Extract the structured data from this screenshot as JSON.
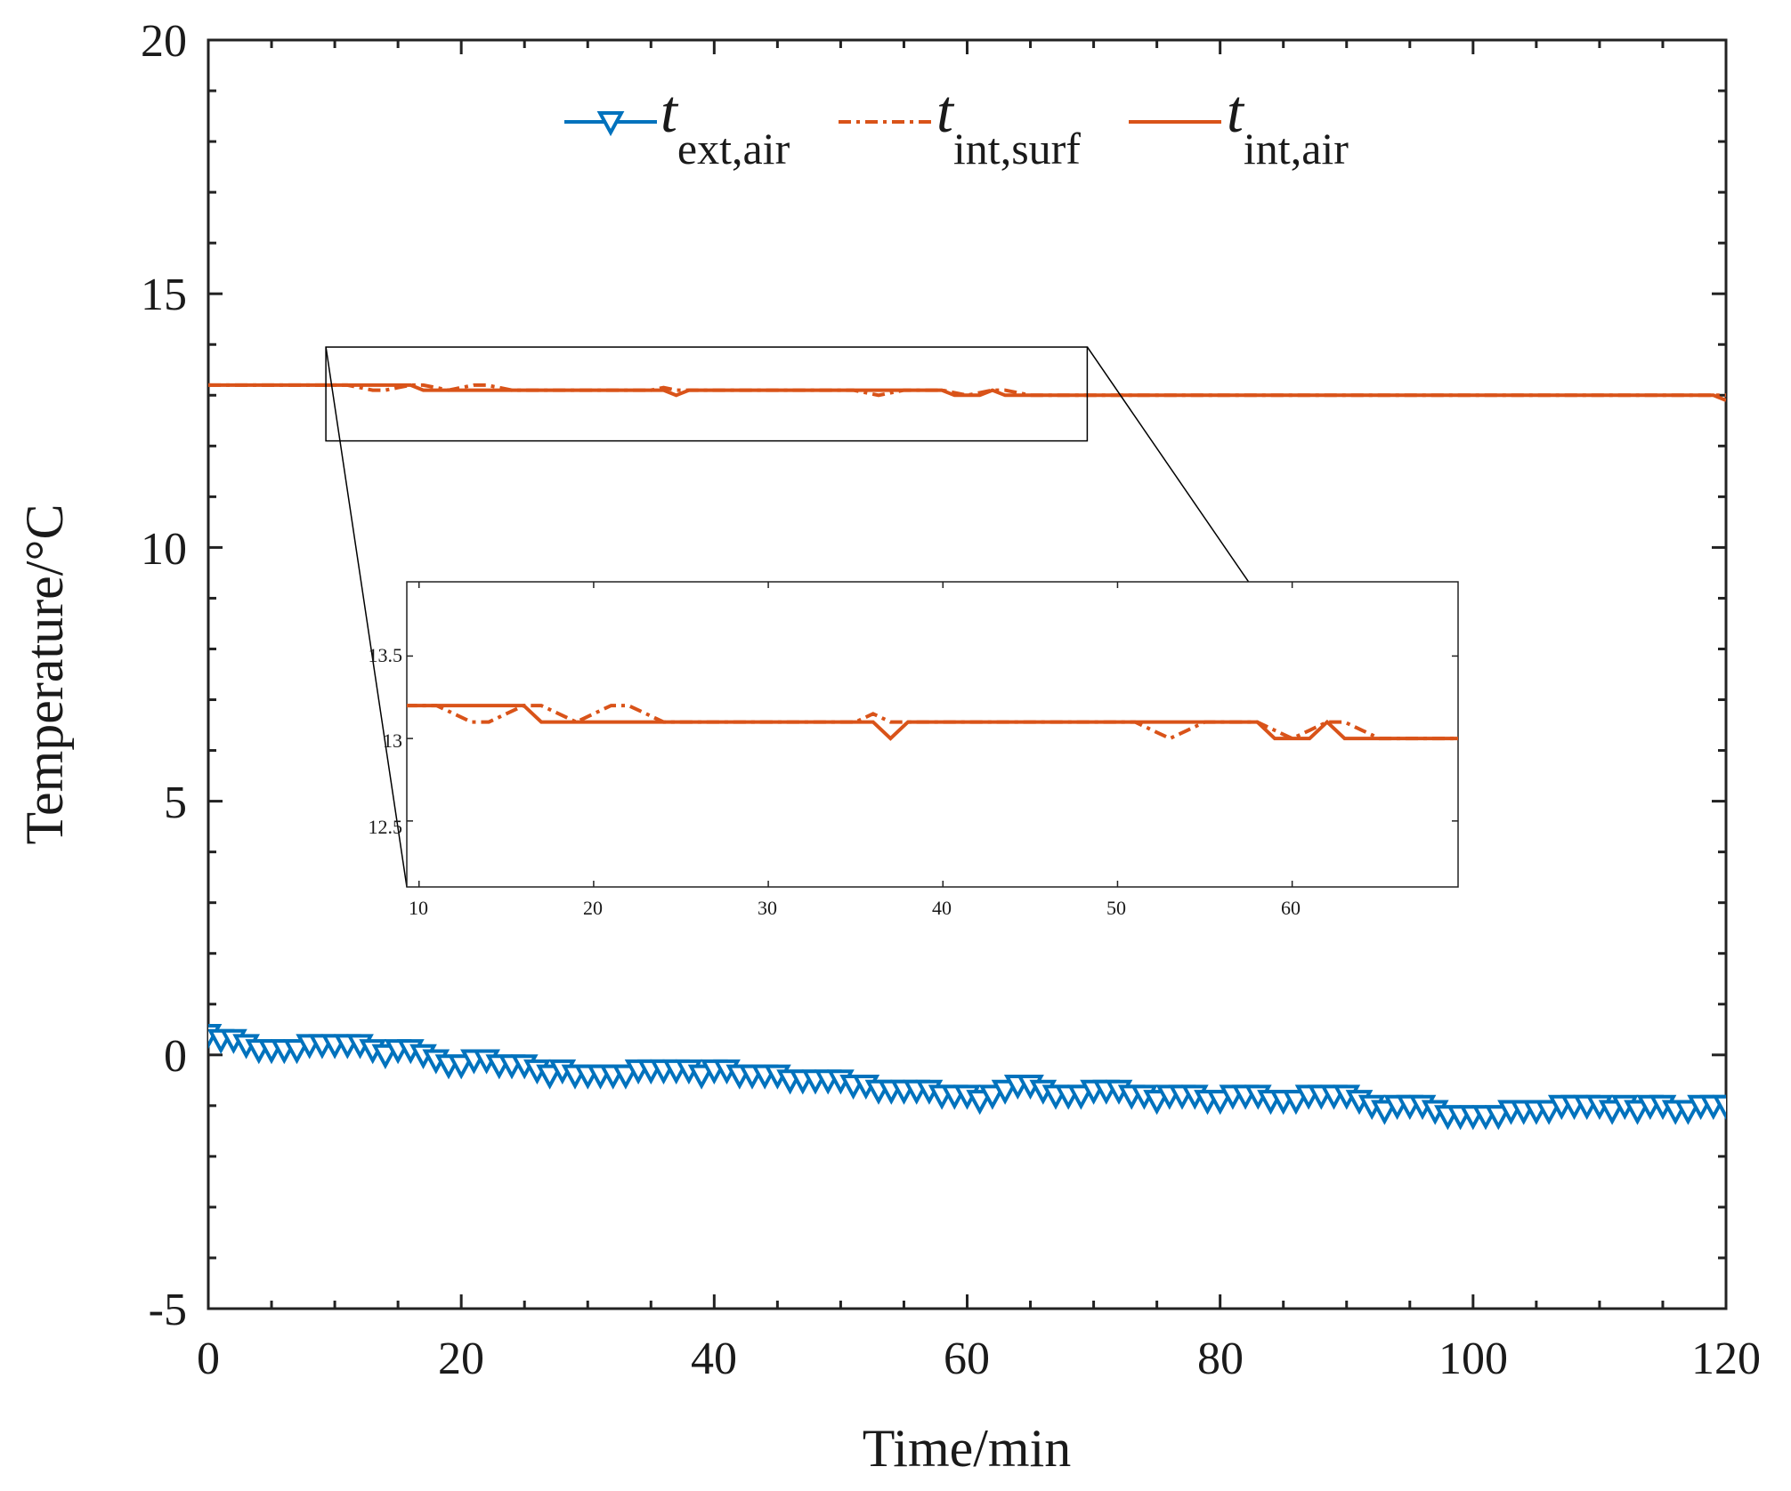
{
  "chart_data": {
    "type": "line",
    "title": "",
    "xlabel": "Time/min",
    "ylabel": "Temperature/°C",
    "xlim": [
      0,
      120
    ],
    "ylim": [
      -5,
      20
    ],
    "xticks": [
      "0",
      "20",
      "40",
      "60",
      "80",
      "100",
      "120"
    ],
    "yticks": [
      "-5",
      "0",
      "5",
      "10",
      "15",
      "20"
    ],
    "legend": {
      "position": "top-center",
      "entries": [
        {
          "symbol": "t",
          "subscript": "ext,air"
        },
        {
          "symbol": "t",
          "subscript": "int,surf"
        },
        {
          "symbol": "t",
          "subscript": "int,air"
        }
      ]
    },
    "colors": {
      "ext_air": "#0072BD",
      "int_surf": "#D95319",
      "int_air": "#D95319",
      "frame": "#000000"
    },
    "series": [
      {
        "name": "t ext,air",
        "style": "solid line with downward-triangle markers",
        "x": [
          0,
          1,
          2,
          3,
          4,
          5,
          6,
          7,
          8,
          9,
          10,
          11,
          12,
          13,
          14,
          15,
          16,
          17,
          18,
          19,
          20,
          21,
          22,
          23,
          24,
          25,
          26,
          27,
          28,
          29,
          30,
          31,
          32,
          33,
          34,
          35,
          36,
          37,
          38,
          39,
          40,
          41,
          42,
          43,
          44,
          45,
          46,
          47,
          48,
          49,
          50,
          51,
          52,
          53,
          54,
          55,
          56,
          57,
          58,
          59,
          60,
          61,
          62,
          63,
          64,
          65,
          66,
          67,
          68,
          69,
          70,
          71,
          72,
          73,
          74,
          75,
          76,
          77,
          78,
          79,
          80,
          81,
          82,
          83,
          84,
          85,
          86,
          87,
          88,
          89,
          90,
          91,
          92,
          93,
          94,
          95,
          96,
          97,
          98,
          99,
          100,
          101,
          102,
          103,
          104,
          105,
          106,
          107,
          108,
          109,
          110,
          111,
          112,
          113,
          114,
          115,
          116,
          117,
          118,
          119,
          120
        ],
        "values": [
          0.4,
          0.3,
          0.3,
          0.2,
          0.1,
          0.1,
          0.1,
          0.1,
          0.2,
          0.2,
          0.2,
          0.2,
          0.2,
          0.1,
          0.0,
          0.1,
          0.1,
          0.0,
          -0.1,
          -0.2,
          -0.2,
          -0.1,
          -0.1,
          -0.2,
          -0.2,
          -0.2,
          -0.3,
          -0.4,
          -0.3,
          -0.4,
          -0.4,
          -0.4,
          -0.4,
          -0.4,
          -0.3,
          -0.3,
          -0.3,
          -0.3,
          -0.3,
          -0.4,
          -0.3,
          -0.3,
          -0.4,
          -0.4,
          -0.4,
          -0.4,
          -0.5,
          -0.5,
          -0.5,
          -0.5,
          -0.5,
          -0.6,
          -0.6,
          -0.7,
          -0.7,
          -0.7,
          -0.7,
          -0.7,
          -0.8,
          -0.8,
          -0.8,
          -0.9,
          -0.8,
          -0.7,
          -0.6,
          -0.6,
          -0.7,
          -0.8,
          -0.8,
          -0.8,
          -0.7,
          -0.7,
          -0.7,
          -0.8,
          -0.8,
          -0.9,
          -0.8,
          -0.8,
          -0.8,
          -0.9,
          -0.9,
          -0.8,
          -0.8,
          -0.8,
          -0.9,
          -0.9,
          -0.9,
          -0.8,
          -0.8,
          -0.8,
          -0.8,
          -0.9,
          -1.0,
          -1.1,
          -1.0,
          -1.0,
          -1.0,
          -1.1,
          -1.2,
          -1.2,
          -1.2,
          -1.2,
          -1.2,
          -1.1,
          -1.1,
          -1.1,
          -1.1,
          -1.0,
          -1.0,
          -1.0,
          -1.0,
          -1.1,
          -1.0,
          -1.1,
          -1.0,
          -1.0,
          -1.1,
          -1.1,
          -1.0,
          -1.0,
          -1.0
        ]
      },
      {
        "name": "t int,surf",
        "style": "dash-dot line",
        "x": [
          0,
          10,
          11,
          12,
          13,
          14,
          15,
          16,
          17,
          18,
          19,
          20,
          21,
          22,
          23,
          24,
          35,
          36,
          37,
          50,
          51,
          52,
          53,
          54,
          55,
          56,
          57,
          58,
          59,
          60,
          61,
          62,
          63,
          64,
          65,
          66,
          67,
          120
        ],
        "values": [
          13.2,
          13.2,
          13.2,
          13.15,
          13.1,
          13.1,
          13.15,
          13.2,
          13.2,
          13.15,
          13.1,
          13.15,
          13.2,
          13.2,
          13.15,
          13.1,
          13.1,
          13.15,
          13.1,
          13.1,
          13.1,
          13.05,
          13.0,
          13.05,
          13.1,
          13.1,
          13.1,
          13.1,
          13.05,
          13.0,
          13.05,
          13.1,
          13.1,
          13.05,
          13.0,
          13.0,
          13.0,
          13.0
        ]
      },
      {
        "name": "t int,air",
        "style": "solid line",
        "x": [
          0,
          16,
          17,
          36,
          37,
          38,
          57,
          58,
          59,
          60,
          61,
          62,
          63,
          64,
          65,
          66,
          119,
          120
        ],
        "values": [
          13.2,
          13.2,
          13.1,
          13.1,
          13.0,
          13.1,
          13.1,
          13.1,
          13.0,
          13.0,
          13.0,
          13.1,
          13.0,
          13.0,
          13.0,
          13.0,
          13.0,
          12.9
        ]
      }
    ],
    "inset": {
      "type": "line",
      "description": "zoomed view of the region marked by the rectangle",
      "xlim": [
        9.3,
        69.5
      ],
      "ylim": [
        12.1,
        13.95
      ],
      "xticks": [
        "10",
        "20",
        "30",
        "40",
        "50",
        "60"
      ],
      "yticks": [
        "12.5",
        "13",
        "13.5"
      ],
      "source_region": {
        "x": [
          9.3,
          69.5
        ],
        "y": [
          12.1,
          13.95
        ]
      }
    }
  }
}
